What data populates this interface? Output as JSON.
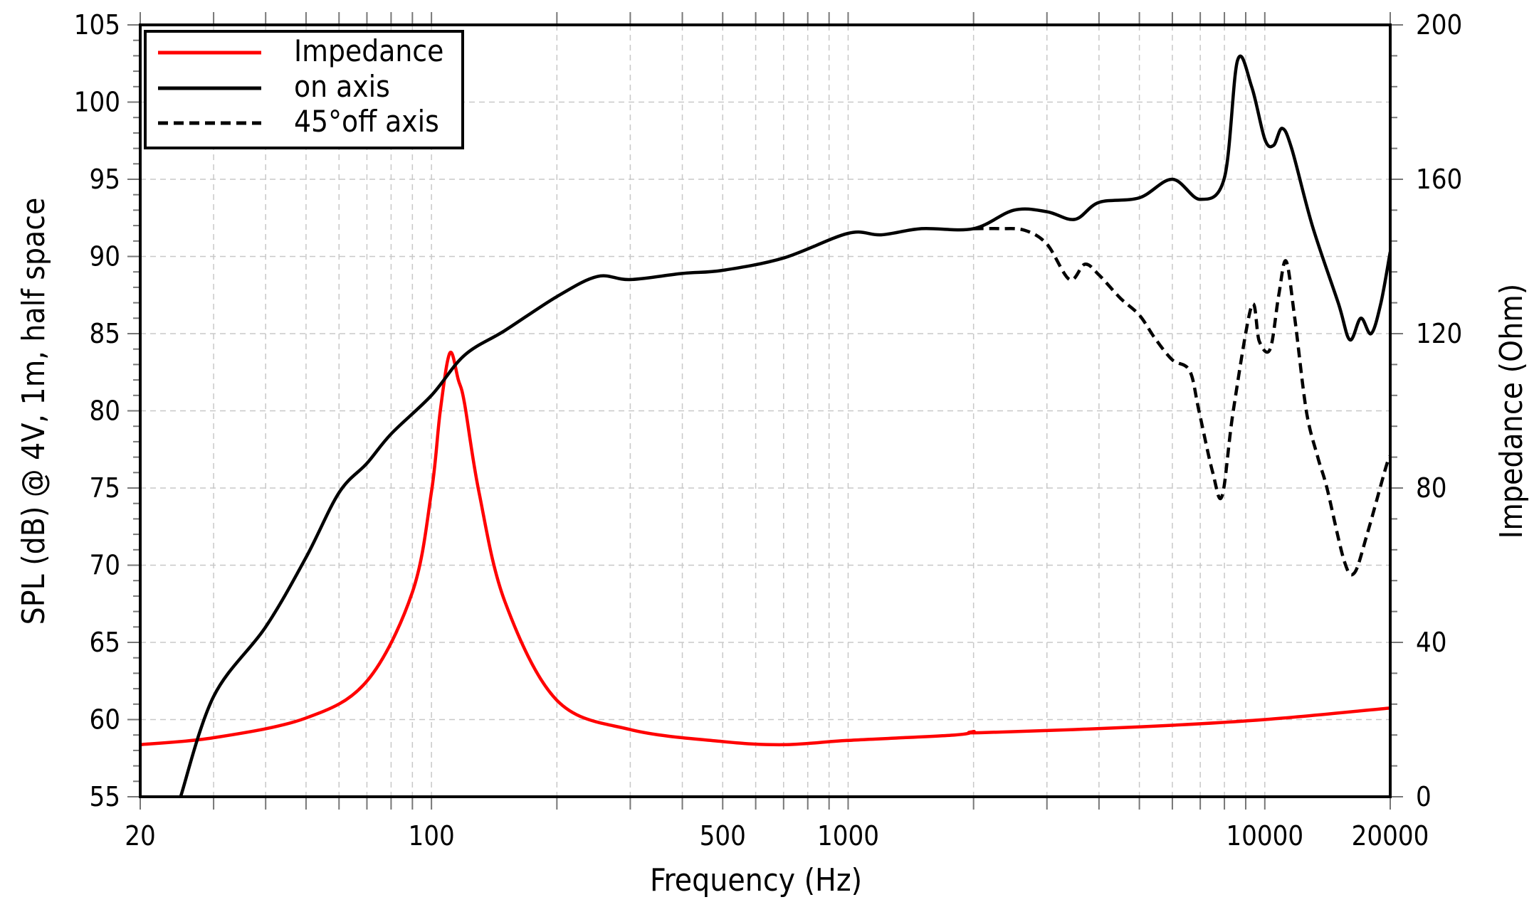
{
  "chart_data": {
    "type": "line",
    "xlabel": "Frequency (Hz)",
    "ylabel": "SPL (dB) @ 4V, 1m, half space",
    "y2label": "Impedance (Ohm)",
    "xscale": "log",
    "xlim": [
      20,
      20000
    ],
    "ylim": [
      55,
      105
    ],
    "y2lim": [
      0,
      200
    ],
    "grid": true,
    "legend_position": "top-left",
    "x_tick_labels": [
      "20",
      "100",
      "500",
      "1000",
      "10000",
      "20000"
    ],
    "x_ticks": [
      20,
      100,
      500,
      1000,
      10000,
      20000
    ],
    "y_ticks": [
      55,
      60,
      65,
      70,
      75,
      80,
      85,
      90,
      95,
      100,
      105
    ],
    "y2_ticks": [
      0,
      40,
      80,
      120,
      160,
      200
    ],
    "series": [
      {
        "name": "Impedance",
        "axis": "right",
        "color": "#ff0000",
        "style": "solid",
        "x": [
          20,
          30,
          50,
          70,
          90,
          100,
          105,
          110.7,
          116,
          120,
          130,
          150,
          200,
          300,
          500,
          700,
          1000,
          1800,
          2000,
          2100,
          5000,
          10000,
          20000
        ],
        "y": [
          13.5,
          15.3,
          20.4,
          30,
          53,
          79,
          100,
          115,
          108,
          102,
          79,
          50.6,
          25,
          17.4,
          14.3,
          13.5,
          14.6,
          16,
          16.9,
          16.6,
          18.1,
          20,
          23
        ]
      },
      {
        "name": "on axis",
        "axis": "left",
        "color": "#000000",
        "style": "solid",
        "x": [
          25,
          30,
          40,
          50,
          60,
          70,
          80,
          100,
          120,
          150,
          200,
          250,
          300,
          400,
          500,
          700,
          1000,
          1200,
          1500,
          2000,
          2500,
          3000,
          3500,
          4000,
          5000,
          6000,
          7000,
          8000,
          8600,
          9300,
          10000,
          10500,
          11000,
          11600,
          13000,
          15000,
          16000,
          17000,
          18000,
          19000,
          20000
        ],
        "y": [
          55,
          61.5,
          66,
          70.5,
          74.7,
          76.6,
          78.5,
          81,
          83.6,
          85.2,
          87.4,
          88.7,
          88.5,
          88.9,
          89.1,
          89.9,
          91.5,
          91.4,
          91.8,
          91.8,
          93,
          92.9,
          92.4,
          93.5,
          93.8,
          95,
          93.7,
          95.1,
          102.7,
          101,
          97.6,
          97.2,
          98.3,
          97,
          92,
          87,
          84.6,
          86,
          85,
          87,
          90.3
        ]
      },
      {
        "name": "45°off axis",
        "axis": "left",
        "color": "#000000",
        "style": "dashed",
        "x": [
          2000,
          2300,
          2650,
          3000,
          3400,
          3700,
          4000,
          4500,
          5000,
          5450,
          6000,
          6600,
          6950,
          7500,
          7900,
          8400,
          9300,
          9700,
          10300,
          10800,
          11250,
          11800,
          12580,
          13400,
          14100,
          15500,
          16400,
          17600,
          19600,
          20000
        ],
        "y": [
          91.8,
          91.8,
          91.7,
          90.8,
          88.5,
          89.5,
          88.8,
          87.3,
          86.2,
          84.7,
          83.3,
          82.6,
          80,
          76,
          74.5,
          80,
          86.8,
          84.5,
          84,
          87.5,
          89.7,
          86,
          80,
          77,
          75,
          70.3,
          69.5,
          72,
          76.5,
          77
        ]
      }
    ]
  }
}
